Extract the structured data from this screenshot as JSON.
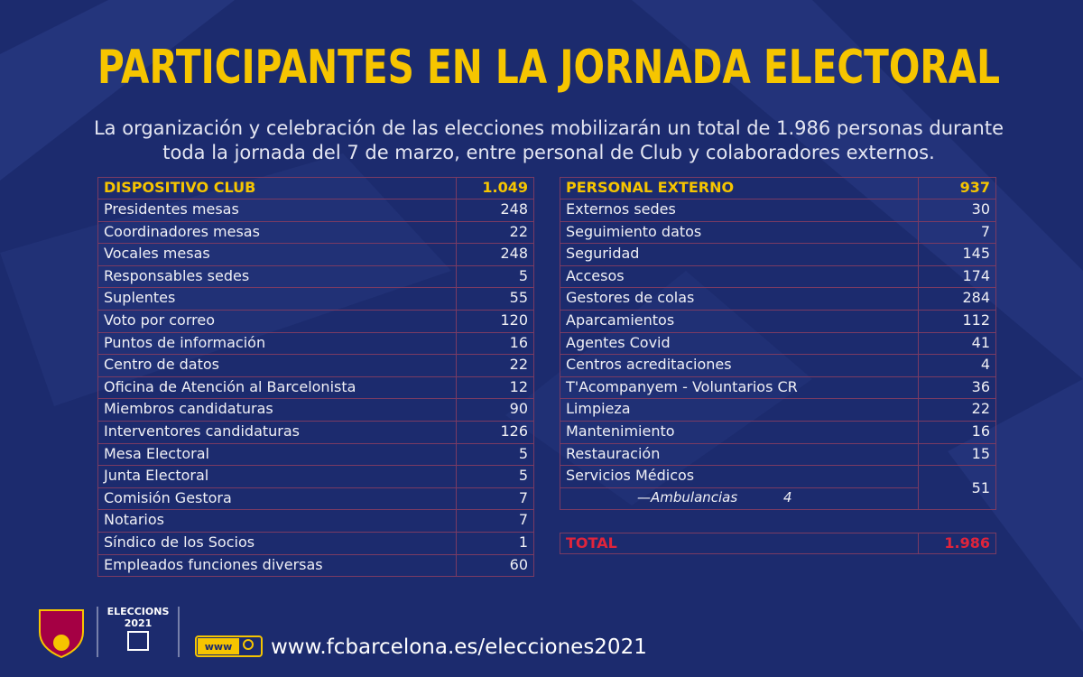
{
  "header": {
    "title": "PARTICIPANTES EN LA JORNADA ELECTORAL",
    "subtitle_lines": [
      "La organización y celebración de las elecciones mobilizarán un total de 1.986 personas durante",
      "toda la jornada del 7 de marzo, entre personal de Club y colaboradores externos."
    ]
  },
  "left_table": {
    "header": [
      "DISPOSITIVO CLUB",
      "1.049"
    ],
    "rows": [
      [
        "Presidentes mesas",
        "248"
      ],
      [
        "Coordinadores mesas",
        "22"
      ],
      [
        "Vocales mesas",
        "248"
      ],
      [
        "Responsables sedes",
        "5"
      ],
      [
        "Suplentes",
        "55"
      ],
      [
        "Voto por correo",
        "120"
      ],
      [
        "Puntos de información",
        "16"
      ],
      [
        "Centro de datos",
        "22"
      ],
      [
        "Oficina de Atención al Barcelonista",
        "12"
      ],
      [
        "Miembros candidaturas",
        "90"
      ],
      [
        "Interventores candidaturas",
        "126"
      ],
      [
        "Mesa Electoral",
        "5"
      ],
      [
        "Junta Electoral",
        "5"
      ],
      [
        "Comisión Gestora",
        "7"
      ],
      [
        "Notarios",
        "7"
      ],
      [
        "Síndico de los Socios",
        "1"
      ],
      [
        "Empleados funciones diversas",
        "60"
      ]
    ]
  },
  "right_table": {
    "header": [
      "PERSONAL EXTERNO",
      "937"
    ],
    "rows": [
      [
        "Externos sedes",
        "30"
      ],
      [
        "Seguimiento datos",
        "7"
      ],
      [
        "Seguridad",
        "145"
      ],
      [
        "Accesos",
        "174"
      ],
      [
        "Gestores de colas",
        "284"
      ],
      [
        "Aparcamientos",
        "112"
      ],
      [
        "Agentes Covid",
        "41"
      ],
      [
        "Centros acreditaciones",
        "4"
      ],
      [
        "T'Acompanyem - Voluntarios CR",
        "36"
      ],
      [
        "Limpieza",
        "22"
      ],
      [
        "Mantenimiento",
        "16"
      ],
      [
        "Restauración",
        "15"
      ]
    ],
    "grouped_row": {
      "label": "Servicios Médicos",
      "sub_label": "—Ambulancias",
      "sub_value": "4",
      "value": "51"
    },
    "total": [
      "TOTAL",
      "1.986"
    ]
  },
  "footer": {
    "badge_line1": "ELECCIONS",
    "badge_line2": "2021",
    "search_label": "www",
    "url": "www.fcbarcelona.es/elecciones2021"
  }
}
